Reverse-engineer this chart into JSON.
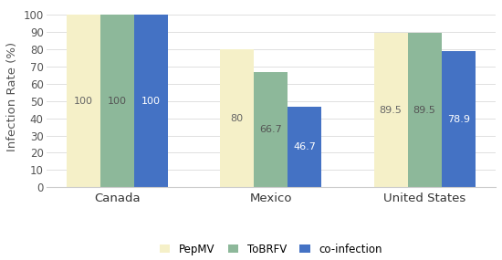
{
  "categories": [
    "Canada",
    "Mexico",
    "United States"
  ],
  "series": {
    "PepMV": [
      100,
      80,
      89.5
    ],
    "ToBRFV": [
      100,
      66.7,
      89.5
    ],
    "co-infection": [
      100,
      46.7,
      78.9
    ]
  },
  "colors": {
    "PepMV": "#f5f0c8",
    "ToBRFV": "#8db89a",
    "co-infection": "#4472c4"
  },
  "ylabel": "Infection Rate (%)",
  "ylim": [
    0,
    105
  ],
  "yticks": [
    0,
    10,
    20,
    30,
    40,
    50,
    60,
    70,
    80,
    90,
    100
  ],
  "bar_width": 0.22,
  "label_fontsize": 8.0,
  "axis_fontsize": 9.5,
  "tick_fontsize": 8.5,
  "legend_fontsize": 8.5,
  "background_color": "#ffffff",
  "value_labels": {
    "PepMV": [
      "100",
      "80",
      "89.5"
    ],
    "ToBRFV": [
      "100",
      "66.7",
      "89.5"
    ],
    "co-infection": [
      "100",
      "46.7",
      "78.9"
    ]
  },
  "label_color": {
    "PepMV": "#666666",
    "ToBRFV": "#555555",
    "co-infection": "#ffffff"
  }
}
